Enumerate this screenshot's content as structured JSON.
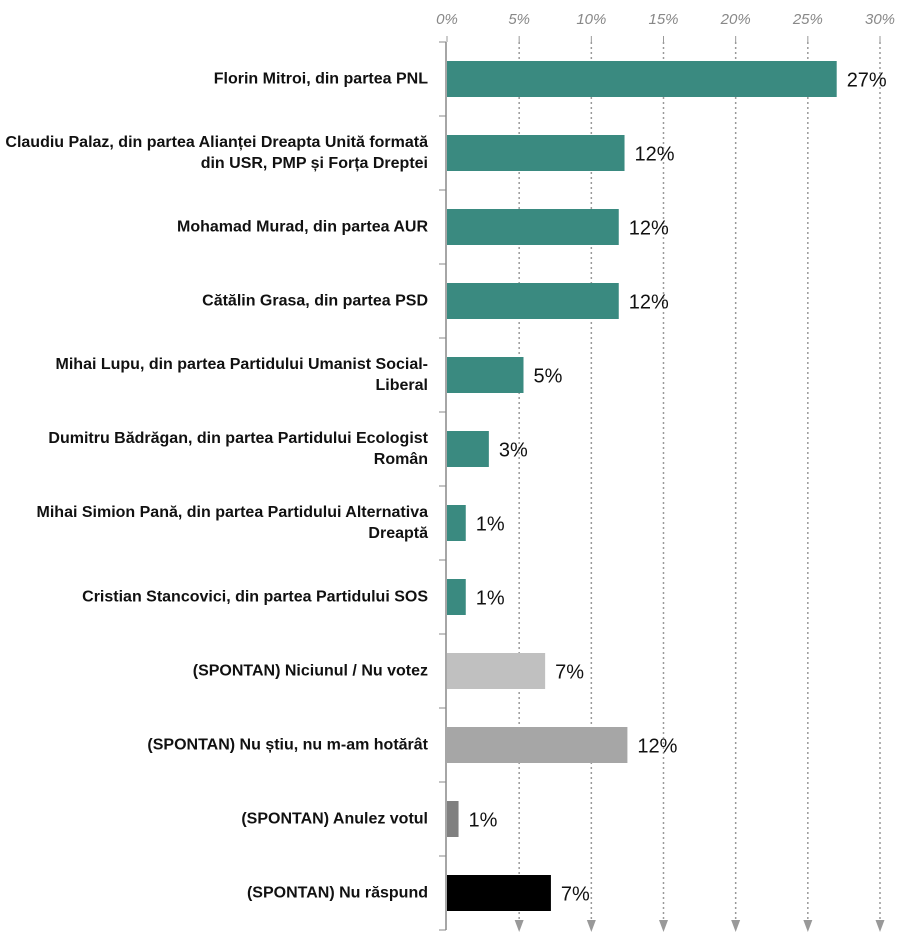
{
  "chart_data": {
    "type": "bar",
    "orientation": "horizontal",
    "categories": [
      "Florin Mitroi, din partea PNL",
      "Claudiu Palaz, din partea Alianței Dreapta Unită formată din USR, PMP și Forța Dreptei",
      "Mohamad Murad, din partea AUR",
      "Cătălin Grasa, din partea PSD",
      "Mihai Lupu, din partea Partidului Umanist Social-Liberal",
      "Dumitru Bădrăgan, din partea Partidului Ecologist Român",
      "Mihai Simion Pană, din partea Partidului Alternativa Dreaptă",
      "Cristian Stancovici, din partea Partidului SOS",
      "(SPONTAN) Niciunul / Nu votez",
      "(SPONTAN) Nu știu, nu m-am hotărât",
      "(SPONTAN) Anulez votul",
      "(SPONTAN) Nu răspund"
    ],
    "values": [
      27,
      12.3,
      11.9,
      11.9,
      5.3,
      2.9,
      1.3,
      1.3,
      6.8,
      12.5,
      0.8,
      7.2
    ],
    "value_labels": [
      "27%",
      "12%",
      "12%",
      "12%",
      "5%",
      "3%",
      "1%",
      "1%",
      "7%",
      "12%",
      "1%",
      "7%"
    ],
    "colors": [
      "#3a8a80",
      "#3a8a80",
      "#3a8a80",
      "#3a8a80",
      "#3a8a80",
      "#3a8a80",
      "#3a8a80",
      "#3a8a80",
      "#c0c0c0",
      "#a6a6a6",
      "#808080",
      "#000000"
    ],
    "xlim": [
      0,
      30
    ],
    "xticks": [
      {
        "value": 0,
        "label": "0%"
      },
      {
        "value": 5,
        "label": "5%"
      },
      {
        "value": 10,
        "label": "10%"
      },
      {
        "value": 15,
        "label": "15%"
      },
      {
        "value": 20,
        "label": "20%"
      },
      {
        "value": 25,
        "label": "25%"
      },
      {
        "value": 30,
        "label": "30%"
      }
    ],
    "grid": true
  }
}
